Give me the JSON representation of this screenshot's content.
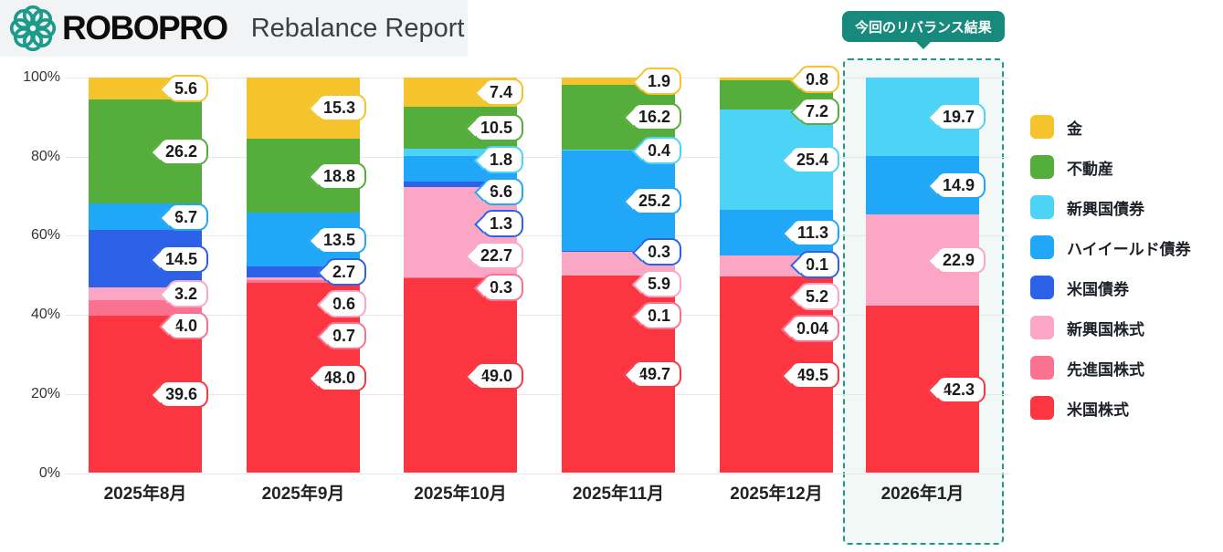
{
  "header": {
    "brand": "ROBOPRO",
    "title": "Rebalance Report"
  },
  "badge": {
    "label": "今回のリバランス結果",
    "color": "#18897D"
  },
  "chart_data": {
    "type": "bar",
    "stacked": true,
    "unit": "%",
    "title": "Rebalance Report",
    "categories": [
      "2025年8月",
      "2025年9月",
      "2025年10月",
      "2025年11月",
      "2025年12月",
      "2026年1月"
    ],
    "series": [
      {
        "name": "金",
        "color": "#F5C42C",
        "values": [
          5.6,
          15.3,
          7.4,
          1.9,
          0.8,
          0
        ],
        "labels": [
          "5.6",
          "15.3",
          "7.4",
          "1.9",
          "0.8",
          null
        ]
      },
      {
        "name": "不動産",
        "color": "#55AE3C",
        "values": [
          26.2,
          18.8,
          10.5,
          16.2,
          7.2,
          0
        ],
        "labels": [
          "26.2",
          "18.8",
          "10.5",
          "16.2",
          "7.2",
          null
        ]
      },
      {
        "name": "新興国債券",
        "color": "#4DD3F5",
        "values": [
          0,
          0,
          1.8,
          0.4,
          25.4,
          19.7
        ],
        "labels": [
          null,
          null,
          "1.8",
          "0.4",
          "25.4",
          "19.7"
        ]
      },
      {
        "name": "ハイイールド債券",
        "color": "#21A7F7",
        "values": [
          6.7,
          13.5,
          6.6,
          25.2,
          11.3,
          14.9
        ],
        "labels": [
          "6.7",
          "13.5",
          "6.6",
          "25.2",
          "11.3",
          "14.9"
        ]
      },
      {
        "name": "米国債券",
        "color": "#2C62E8",
        "values": [
          14.5,
          2.7,
          1.3,
          0.3,
          0.1,
          0
        ],
        "labels": [
          "14.5",
          "2.7",
          "1.3",
          "0.3",
          "0.1",
          null
        ]
      },
      {
        "name": "新興国株式",
        "color": "#FCA6C6",
        "values": [
          3.2,
          0.6,
          22.7,
          5.9,
          5.2,
          22.9
        ],
        "labels": [
          "3.2",
          "0.6",
          "22.7",
          "5.9",
          "5.2",
          "22.9"
        ]
      },
      {
        "name": "先進国株式",
        "color": "#FB7190",
        "values": [
          4.0,
          0.7,
          0.3,
          0.1,
          0.04,
          0
        ],
        "labels": [
          "4.0",
          "0.7",
          "0.3",
          "0.1",
          "0.04",
          null
        ]
      },
      {
        "name": "米国株式",
        "color": "#FC3640",
        "values": [
          39.6,
          48.0,
          49.0,
          49.7,
          49.5,
          42.3
        ],
        "labels": [
          "39.6",
          "48.0",
          "49.0",
          "49.7",
          "49.5",
          "42.3"
        ]
      }
    ],
    "y_ticks": [
      {
        "label": "100%",
        "v": 100
      },
      {
        "label": "80%",
        "v": 80
      },
      {
        "label": "60%",
        "v": 60
      },
      {
        "label": "40%",
        "v": 40
      },
      {
        "label": "20%",
        "v": 20
      },
      {
        "label": "0%",
        "v": 0
      }
    ],
    "ylim": [
      0,
      100
    ],
    "grid": true,
    "legend_position": "right",
    "highlight": {
      "category": "2026年1月",
      "label": "今回のリバランス結果",
      "border_color": "#1C9B8A",
      "fill": "#F2F8F6"
    }
  }
}
